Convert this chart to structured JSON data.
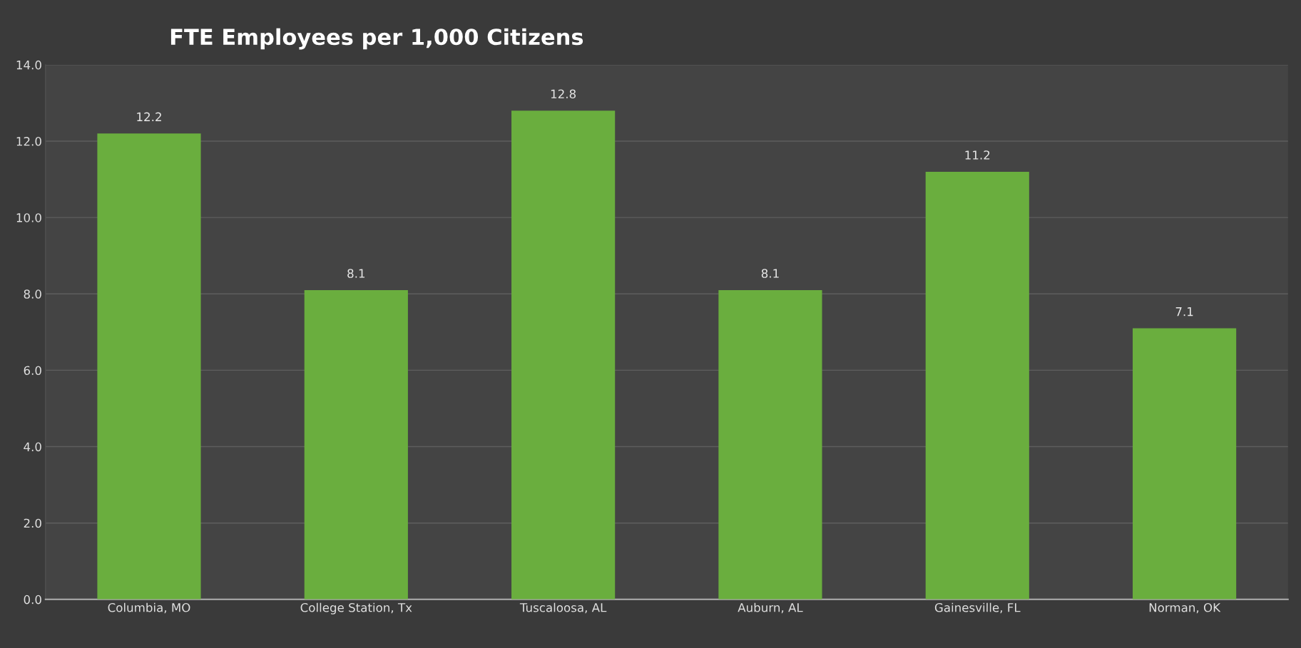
{
  "chart_data": {
    "type": "bar",
    "title": "FTE Employees per 1,000 Citizens",
    "categories": [
      "Columbia, MO",
      "College Station, Tx",
      "Tuscaloosa, AL",
      "Auburn, AL",
      "Gainesville, FL",
      "Norman, OK"
    ],
    "values": [
      12.2,
      8.1,
      12.8,
      8.1,
      11.2,
      7.1
    ],
    "color": "#6aae3e",
    "ylim": [
      0,
      14
    ],
    "yticks": [
      {
        "value": 0,
        "label": "0.0"
      },
      {
        "value": 2,
        "label": "2.0"
      },
      {
        "value": 4,
        "label": "4.0"
      },
      {
        "value": 6,
        "label": "6.0"
      },
      {
        "value": 8,
        "label": "8.0"
      },
      {
        "value": 10,
        "label": "10.0"
      },
      {
        "value": 12,
        "label": "12.0"
      },
      {
        "value": 14,
        "label": "14.0"
      }
    ],
    "grid": "y",
    "data_labels": true
  }
}
